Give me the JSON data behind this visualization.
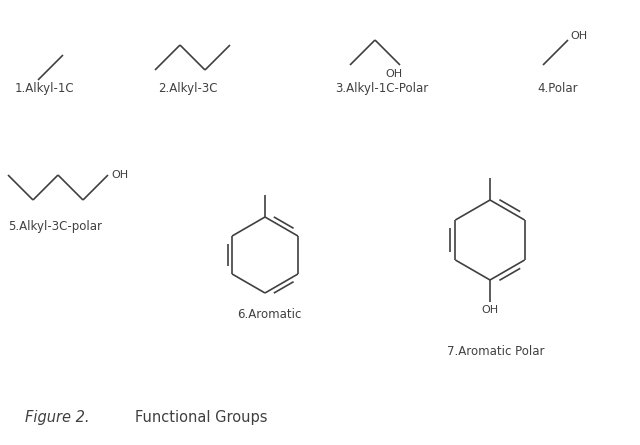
{
  "title": "Figure 2.",
  "subtitle": "Functional Groups",
  "background_color": "#ffffff",
  "labels": {
    "1": "1.Alkyl-1C",
    "2": "2.Alkyl-3C",
    "3": "3.Alkyl-1C-Polar",
    "4": "4.Polar",
    "5": "5.Alkyl-3C-polar",
    "6": "6.Aromatic",
    "7": "7.Aromatic Polar"
  },
  "line_color": "#404040",
  "label_fontsize": 8.5,
  "caption_fontsize": 10.5,
  "fig_width": 6.4,
  "fig_height": 4.45,
  "dpi": 100
}
